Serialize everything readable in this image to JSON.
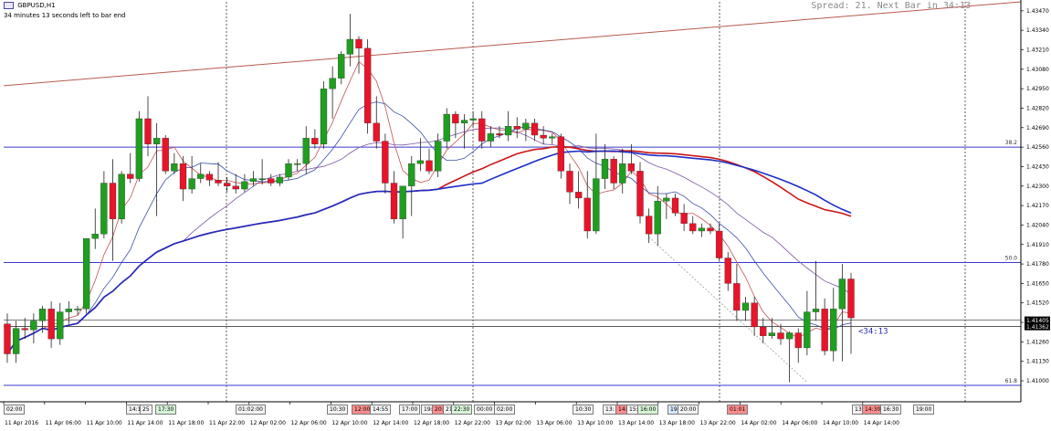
{
  "window": {
    "symbol_label": "GBPUSD,H1",
    "countdown_note": "34 minutes 13 seconds left to bar end",
    "spread_text": "Spread: 21. Next Bar in 34:13",
    "timer_label": "<34:13"
  },
  "colors": {
    "bull": "#1f9e1f",
    "bear": "#e8142a",
    "ma_fast_red": "#c45050",
    "ma_fast_blue": "#3b4fa8",
    "ma_mid_purple": "#7b56a3",
    "ma_slow_red": "#cc1414",
    "ma_slow_blue": "#1c2ec8",
    "fib_line": "#3a3ad0",
    "trendline": "#b85a4e",
    "grid_vline": "#333333"
  },
  "price_axis": {
    "min": 1.4086,
    "max": 1.4353,
    "ticks": [
      "1.43470",
      "1.43340",
      "1.43210",
      "1.43080",
      "1.42950",
      "1.42820",
      "1.42690",
      "1.42560",
      "1.42430",
      "1.42300",
      "1.42170",
      "1.42040",
      "1.41910",
      "1.41780",
      "1.41650",
      "1.41520",
      "1.41390",
      "1.41260",
      "1.41130",
      "1.41000"
    ],
    "current_price_labels": [
      "1.41405",
      "1.41362"
    ]
  },
  "fib_levels": [
    {
      "label": "38.2",
      "price": 1.4256
    },
    {
      "label": "50.0",
      "price": 1.4179
    },
    {
      "label": "61.8",
      "price": 1.4097
    }
  ],
  "time_axis": {
    "labels": [
      "11 Apr 2016",
      "11 Apr 06:00",
      "11 Apr 10:00",
      "11 Apr 14:00",
      "11 Apr 18:00",
      "11 Apr 22:00",
      "12 Apr 02:00",
      "12 Apr 06:00",
      "12 Apr 10:00",
      "12 Apr 14:00",
      "12 Apr 18:00",
      "12 Apr 22:00",
      "13 Apr 02:00",
      "13 Apr 06:00",
      "13 Apr 10:00",
      "13 Apr 14:00",
      "13 Apr 18:00",
      "13 Apr 22:00",
      "14 Apr 02:00",
      "14 Apr 06:00",
      "14 Apr 10:00",
      "14 Apr 14:00"
    ]
  },
  "session_tags": [
    {
      "text": "02:00",
      "style": "plain"
    },
    {
      "text": "14:15",
      "style": "plain"
    },
    {
      "text": "25",
      "style": "plain"
    },
    {
      "text": "17:30",
      "style": "green"
    },
    {
      "text": "01:02:00",
      "style": "plain"
    },
    {
      "text": "10:30",
      "style": "plain"
    },
    {
      "text": "12:00",
      "style": "red"
    },
    {
      "text": "14:55",
      "style": "plain"
    },
    {
      "text": "17:00",
      "style": "plain"
    },
    {
      "text": "19:",
      "style": "plain"
    },
    {
      "text": "20:",
      "style": "red"
    },
    {
      "text": "21:",
      "style": "plain"
    },
    {
      "text": "22:30",
      "style": "green"
    },
    {
      "text": "00:00",
      "style": "plain"
    },
    {
      "text": "02:00",
      "style": "plain"
    },
    {
      "text": "10:30",
      "style": "plain"
    },
    {
      "text": "13:",
      "style": "plain"
    },
    {
      "text": "14:",
      "style": "red"
    },
    {
      "text": "15:",
      "style": "plain"
    },
    {
      "text": "16:00",
      "style": "green"
    },
    {
      "text": "19:",
      "style": "blue"
    },
    {
      "text": "20:00",
      "style": "plain"
    },
    {
      "text": "01:01",
      "style": "red"
    },
    {
      "text": "13:",
      "style": "plain"
    },
    {
      "text": "14:30",
      "style": "red"
    },
    {
      "text": "16:30",
      "style": "plain"
    },
    {
      "text": "19:00",
      "style": "plain"
    }
  ],
  "chart_data": {
    "type": "candlestick",
    "title": "GBPUSD,H1",
    "ylim": [
      1.4086,
      1.4353
    ],
    "grid": false,
    "candles": [
      {
        "o": 1.4138,
        "h": 1.4145,
        "l": 1.4112,
        "c": 1.4118
      },
      {
        "o": 1.4118,
        "h": 1.414,
        "l": 1.4112,
        "c": 1.4135
      },
      {
        "o": 1.4135,
        "h": 1.4142,
        "l": 1.4128,
        "c": 1.4134
      },
      {
        "o": 1.4134,
        "h": 1.4145,
        "l": 1.4125,
        "c": 1.414
      },
      {
        "o": 1.414,
        "h": 1.415,
        "l": 1.4132,
        "c": 1.4148
      },
      {
        "o": 1.4148,
        "h": 1.4153,
        "l": 1.4122,
        "c": 1.4128
      },
      {
        "o": 1.4128,
        "h": 1.4152,
        "l": 1.4124,
        "c": 1.4146
      },
      {
        "o": 1.4146,
        "h": 1.4153,
        "l": 1.4138,
        "c": 1.4148
      },
      {
        "o": 1.4148,
        "h": 1.415,
        "l": 1.4144,
        "c": 1.4148
      },
      {
        "o": 1.4148,
        "h": 1.4195,
        "l": 1.4145,
        "c": 1.4195
      },
      {
        "o": 1.4195,
        "h": 1.4215,
        "l": 1.4188,
        "c": 1.4198
      },
      {
        "o": 1.4198,
        "h": 1.424,
        "l": 1.4195,
        "c": 1.4232
      },
      {
        "o": 1.4232,
        "h": 1.4248,
        "l": 1.418,
        "c": 1.4208
      },
      {
        "o": 1.4208,
        "h": 1.424,
        "l": 1.4205,
        "c": 1.4238
      },
      {
        "o": 1.4238,
        "h": 1.4252,
        "l": 1.4232,
        "c": 1.4235
      },
      {
        "o": 1.4235,
        "h": 1.428,
        "l": 1.4233,
        "c": 1.4275
      },
      {
        "o": 1.4275,
        "h": 1.429,
        "l": 1.425,
        "c": 1.4258
      },
      {
        "o": 1.4258,
        "h": 1.4272,
        "l": 1.421,
        "c": 1.4262
      },
      {
        "o": 1.4262,
        "h": 1.4264,
        "l": 1.4238,
        "c": 1.424
      },
      {
        "o": 1.424,
        "h": 1.4252,
        "l": 1.4238,
        "c": 1.4245
      },
      {
        "o": 1.4245,
        "h": 1.425,
        "l": 1.422,
        "c": 1.4228
      },
      {
        "o": 1.4228,
        "h": 1.425,
        "l": 1.4225,
        "c": 1.4235
      },
      {
        "o": 1.4235,
        "h": 1.4245,
        "l": 1.4232,
        "c": 1.4238
      },
      {
        "o": 1.4238,
        "h": 1.424,
        "l": 1.423,
        "c": 1.4234
      },
      {
        "o": 1.4234,
        "h": 1.4246,
        "l": 1.423,
        "c": 1.4232
      },
      {
        "o": 1.4232,
        "h": 1.4236,
        "l": 1.4226,
        "c": 1.423
      },
      {
        "o": 1.423,
        "h": 1.4238,
        "l": 1.4225,
        "c": 1.4228
      },
      {
        "o": 1.4228,
        "h": 1.4238,
        "l": 1.4226,
        "c": 1.4233
      },
      {
        "o": 1.4233,
        "h": 1.424,
        "l": 1.423,
        "c": 1.4235
      },
      {
        "o": 1.4235,
        "h": 1.4248,
        "l": 1.4231,
        "c": 1.4235
      },
      {
        "o": 1.4235,
        "h": 1.4238,
        "l": 1.423,
        "c": 1.4232
      },
      {
        "o": 1.4232,
        "h": 1.4238,
        "l": 1.423,
        "c": 1.4236
      },
      {
        "o": 1.4236,
        "h": 1.4248,
        "l": 1.4234,
        "c": 1.4245
      },
      {
        "o": 1.4245,
        "h": 1.4248,
        "l": 1.424,
        "c": 1.4245
      },
      {
        "o": 1.4245,
        "h": 1.427,
        "l": 1.4238,
        "c": 1.4262
      },
      {
        "o": 1.4262,
        "h": 1.4268,
        "l": 1.4255,
        "c": 1.4258
      },
      {
        "o": 1.4258,
        "h": 1.43,
        "l": 1.4255,
        "c": 1.4295
      },
      {
        "o": 1.4295,
        "h": 1.431,
        "l": 1.4275,
        "c": 1.4302
      },
      {
        "o": 1.4302,
        "h": 1.432,
        "l": 1.4298,
        "c": 1.4318
      },
      {
        "o": 1.4318,
        "h": 1.4345,
        "l": 1.431,
        "c": 1.4328
      },
      {
        "o": 1.4328,
        "h": 1.433,
        "l": 1.4305,
        "c": 1.4322
      },
      {
        "o": 1.4322,
        "h": 1.4328,
        "l": 1.4265,
        "c": 1.4272
      },
      {
        "o": 1.4272,
        "h": 1.429,
        "l": 1.4255,
        "c": 1.426
      },
      {
        "o": 1.426,
        "h": 1.4265,
        "l": 1.4225,
        "c": 1.4232
      },
      {
        "o": 1.4232,
        "h": 1.424,
        "l": 1.4205,
        "c": 1.4208
      },
      {
        "o": 1.4208,
        "h": 1.423,
        "l": 1.4195,
        "c": 1.423
      },
      {
        "o": 1.423,
        "h": 1.425,
        "l": 1.421,
        "c": 1.4245
      },
      {
        "o": 1.4245,
        "h": 1.4262,
        "l": 1.424,
        "c": 1.4247
      },
      {
        "o": 1.4247,
        "h": 1.4255,
        "l": 1.4238,
        "c": 1.424
      },
      {
        "o": 1.424,
        "h": 1.4265,
        "l": 1.4236,
        "c": 1.426
      },
      {
        "o": 1.426,
        "h": 1.4282,
        "l": 1.4255,
        "c": 1.4278
      },
      {
        "o": 1.4278,
        "h": 1.428,
        "l": 1.4262,
        "c": 1.4272
      },
      {
        "o": 1.4272,
        "h": 1.4278,
        "l": 1.4255,
        "c": 1.4274
      },
      {
        "o": 1.4274,
        "h": 1.428,
        "l": 1.427,
        "c": 1.4275
      },
      {
        "o": 1.4275,
        "h": 1.428,
        "l": 1.4255,
        "c": 1.426
      },
      {
        "o": 1.426,
        "h": 1.427,
        "l": 1.4256,
        "c": 1.4265
      },
      {
        "o": 1.4265,
        "h": 1.427,
        "l": 1.4262,
        "c": 1.4264
      },
      {
        "o": 1.4264,
        "h": 1.428,
        "l": 1.426,
        "c": 1.427
      },
      {
        "o": 1.427,
        "h": 1.4276,
        "l": 1.4262,
        "c": 1.4268
      },
      {
        "o": 1.4268,
        "h": 1.4275,
        "l": 1.426,
        "c": 1.4272
      },
      {
        "o": 1.4272,
        "h": 1.4275,
        "l": 1.426,
        "c": 1.4264
      },
      {
        "o": 1.4264,
        "h": 1.427,
        "l": 1.4258,
        "c": 1.4262
      },
      {
        "o": 1.4262,
        "h": 1.4265,
        "l": 1.4258,
        "c": 1.4263
      },
      {
        "o": 1.4263,
        "h": 1.4265,
        "l": 1.4235,
        "c": 1.424
      },
      {
        "o": 1.424,
        "h": 1.4245,
        "l": 1.4218,
        "c": 1.4226
      },
      {
        "o": 1.4226,
        "h": 1.424,
        "l": 1.4215,
        "c": 1.4222
      },
      {
        "o": 1.4222,
        "h": 1.424,
        "l": 1.4195,
        "c": 1.42
      },
      {
        "o": 1.42,
        "h": 1.4265,
        "l": 1.4198,
        "c": 1.4235
      },
      {
        "o": 1.4235,
        "h": 1.4258,
        "l": 1.4228,
        "c": 1.4248
      },
      {
        "o": 1.4248,
        "h": 1.425,
        "l": 1.4228,
        "c": 1.4232
      },
      {
        "o": 1.4232,
        "h": 1.4255,
        "l": 1.4225,
        "c": 1.4245
      },
      {
        "o": 1.4245,
        "h": 1.4258,
        "l": 1.4238,
        "c": 1.424
      },
      {
        "o": 1.424,
        "h": 1.4246,
        "l": 1.4205,
        "c": 1.421
      },
      {
        "o": 1.421,
        "h": 1.4215,
        "l": 1.4192,
        "c": 1.4198
      },
      {
        "o": 1.4198,
        "h": 1.423,
        "l": 1.419,
        "c": 1.422
      },
      {
        "o": 1.422,
        "h": 1.4225,
        "l": 1.4208,
        "c": 1.4222
      },
      {
        "o": 1.4222,
        "h": 1.4225,
        "l": 1.421,
        "c": 1.4212
      },
      {
        "o": 1.4212,
        "h": 1.4218,
        "l": 1.42,
        "c": 1.4205
      },
      {
        "o": 1.4205,
        "h": 1.421,
        "l": 1.4198,
        "c": 1.42
      },
      {
        "o": 1.42,
        "h": 1.4205,
        "l": 1.4196,
        "c": 1.4202
      },
      {
        "o": 1.4202,
        "h": 1.4205,
        "l": 1.4198,
        "c": 1.42
      },
      {
        "o": 1.42,
        "h": 1.4205,
        "l": 1.418,
        "c": 1.4182
      },
      {
        "o": 1.4182,
        "h": 1.4186,
        "l": 1.416,
        "c": 1.4165
      },
      {
        "o": 1.4165,
        "h": 1.4178,
        "l": 1.414,
        "c": 1.4147
      },
      {
        "o": 1.4147,
        "h": 1.4156,
        "l": 1.414,
        "c": 1.4152
      },
      {
        "o": 1.4152,
        "h": 1.4156,
        "l": 1.413,
        "c": 1.4136
      },
      {
        "o": 1.4136,
        "h": 1.4142,
        "l": 1.4125,
        "c": 1.413
      },
      {
        "o": 1.413,
        "h": 1.4142,
        "l": 1.4128,
        "c": 1.4132
      },
      {
        "o": 1.4132,
        "h": 1.4138,
        "l": 1.4124,
        "c": 1.4128
      },
      {
        "o": 1.4128,
        "h": 1.4133,
        "l": 1.4099,
        "c": 1.4132
      },
      {
        "o": 1.4132,
        "h": 1.4135,
        "l": 1.4112,
        "c": 1.4122
      },
      {
        "o": 1.4122,
        "h": 1.416,
        "l": 1.4117,
        "c": 1.4146
      },
      {
        "o": 1.4146,
        "h": 1.418,
        "l": 1.414,
        "c": 1.4148
      },
      {
        "o": 1.4148,
        "h": 1.4155,
        "l": 1.4117,
        "c": 1.412
      },
      {
        "o": 1.412,
        "h": 1.4162,
        "l": 1.4113,
        "c": 1.4148
      },
      {
        "o": 1.4148,
        "h": 1.4178,
        "l": 1.4113,
        "c": 1.4168
      },
      {
        "o": 1.4168,
        "h": 1.4172,
        "l": 1.4118,
        "c": 1.4142
      }
    ],
    "moving_averages": [
      {
        "name": "fast-red",
        "color": "#c45050",
        "width": 0.8,
        "period": 5
      },
      {
        "name": "fast-blue",
        "color": "#3b4fa8",
        "width": 0.8,
        "period": 10
      },
      {
        "name": "mid-purple",
        "color": "#7b56a3",
        "width": 0.8,
        "period": 21
      },
      {
        "name": "slow-red",
        "color": "#cc1414",
        "width": 1.6,
        "period": 50
      },
      {
        "name": "slow-blue",
        "color": "#1c2ec8",
        "width": 1.6,
        "period": 55
      }
    ]
  }
}
